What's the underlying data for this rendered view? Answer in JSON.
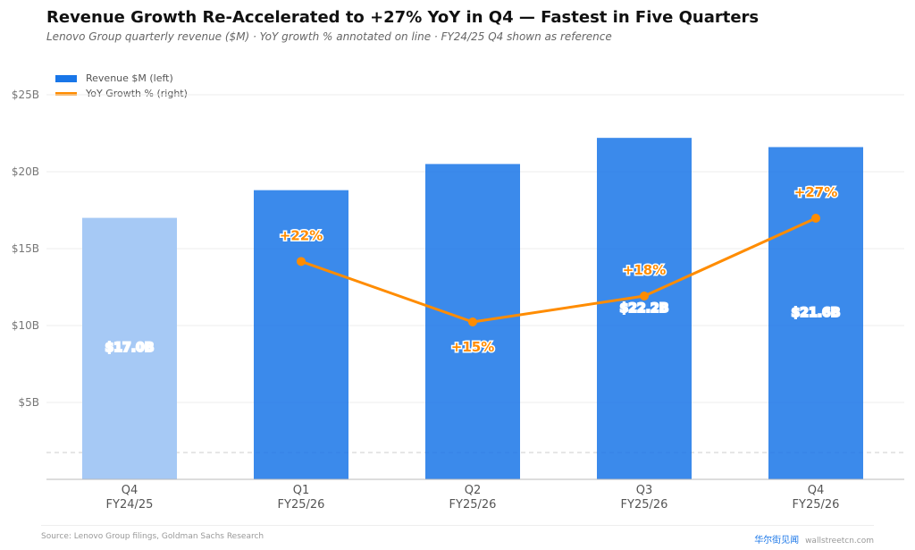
{
  "header": {
    "title": "Revenue Growth Re-Accelerated to +27% YoY in Q4 — Fastest in Five Quarters",
    "subtitle": "Lenovo Group quarterly revenue ($M)  ·  YoY growth % annotated on line  ·  FY24/25 Q4 shown as reference"
  },
  "legend": {
    "bar_label": "Revenue $M (left)",
    "line_label": "YoY Growth % (right)"
  },
  "colors": {
    "bar": "#1976e8",
    "bar_reference": "#a6c9f5",
    "line": "#ff8c00"
  },
  "chart_data": {
    "type": "bar",
    "categories": [
      [
        "Q4",
        "FY24/25"
      ],
      [
        "Q1",
        "FY25/26"
      ],
      [
        "Q2",
        "FY25/26"
      ],
      [
        "Q3",
        "FY25/26"
      ],
      [
        "Q4",
        "FY25/26"
      ]
    ],
    "y_ticks": [
      "$5B",
      "$10B",
      "$15B",
      "$20B",
      "$25B"
    ],
    "ylim": [
      0,
      25
    ],
    "grid": true,
    "legend_position": "top-left",
    "series": [
      {
        "name": "Revenue $M (left)",
        "type": "bar",
        "values": [
          17.0,
          18.8,
          20.5,
          22.2,
          21.6
        ],
        "reference_index": 0,
        "labels": [
          "$17.0B",
          "",
          "",
          "$22.2B",
          "$21.6B"
        ]
      },
      {
        "name": "YoY Growth % (right)",
        "type": "line",
        "values": [
          null,
          22,
          15,
          18,
          27
        ],
        "labels": [
          "",
          "+22%",
          "+15%",
          "+18%",
          "+27%"
        ]
      }
    ]
  },
  "footer": {
    "source": "Source: Lenovo Group filings, Goldman Sachs Research",
    "brand_cn": "华尔街见闻",
    "brand_site": "wallstreetcn.com"
  }
}
